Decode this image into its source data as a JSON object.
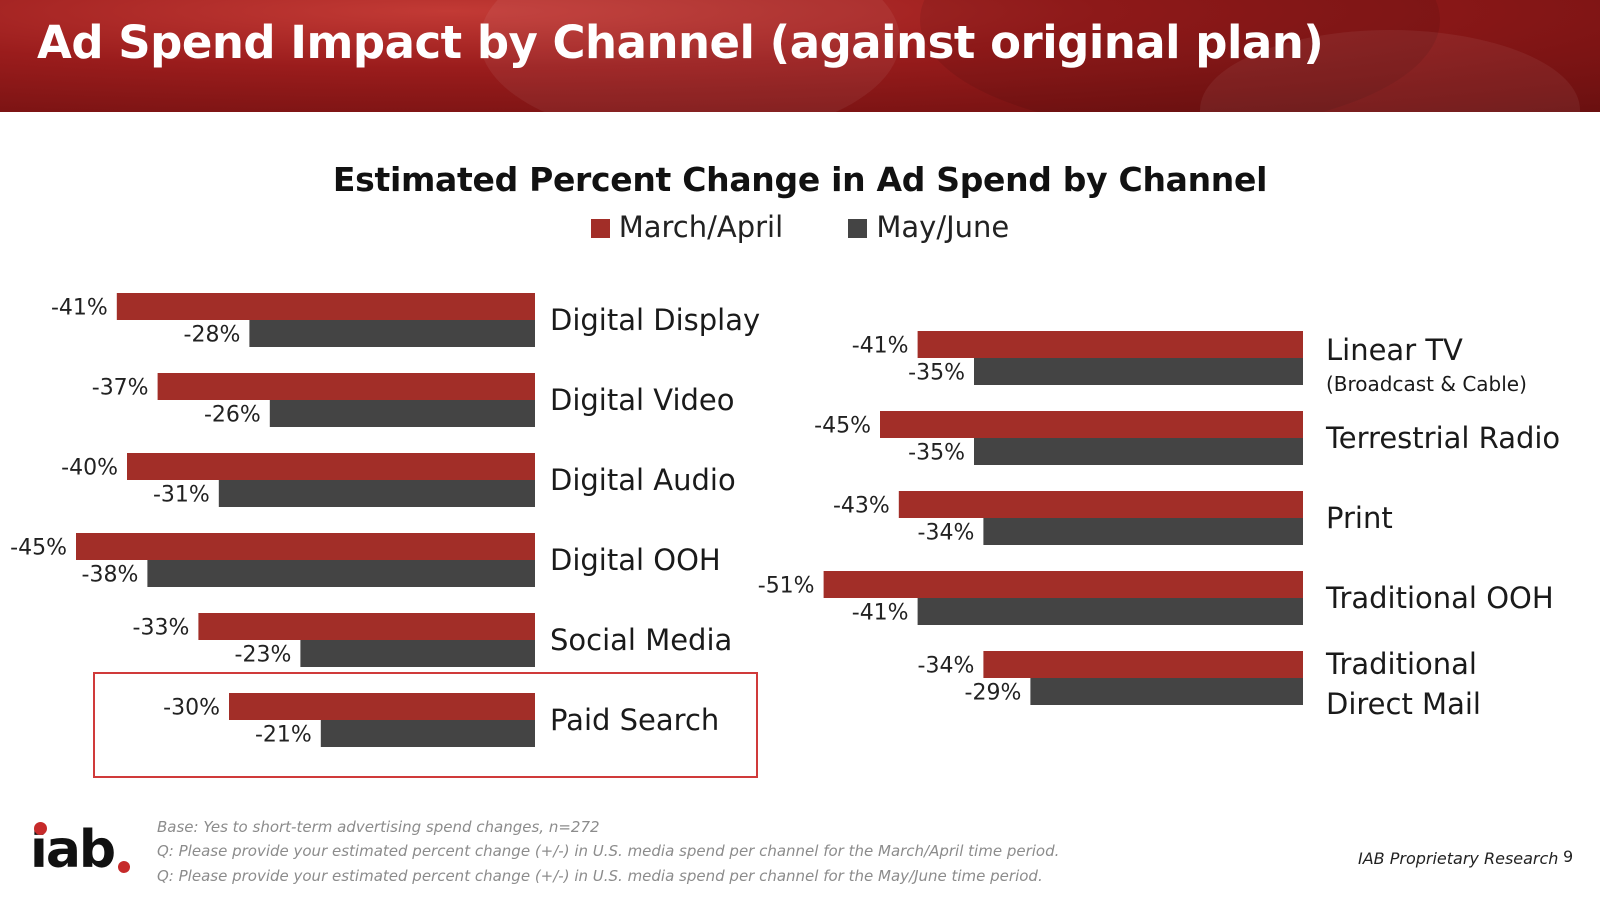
{
  "header": {
    "title": "Ad Spend Impact by Channel (against original plan)"
  },
  "legend": {
    "items": [
      "March/April",
      "May/June"
    ]
  },
  "colors": {
    "march_april": "#a22e28",
    "may_june": "#444444",
    "highlight_border": "#d03a3a",
    "header": "#8a1818"
  },
  "chart_data": [
    {
      "type": "bar",
      "title": "Estimated Percent Change in Ad Spend by Channel",
      "orientation": "horizontal",
      "categories": [
        {
          "label": "Digital Display"
        },
        {
          "label": "Digital Video"
        },
        {
          "label": "Digital Audio"
        },
        {
          "label": "Digital OOH"
        },
        {
          "label": "Social Media"
        },
        {
          "label": "Paid Search",
          "highlighted": true
        }
      ],
      "series": [
        {
          "name": "March/April",
          "values": [
            -41,
            -37,
            -40,
            -45,
            -33,
            -30
          ],
          "labels": [
            "-41%",
            "-37%",
            "-40%",
            "-45%",
            "-33%",
            "-30%"
          ]
        },
        {
          "name": "May/June",
          "values": [
            -28,
            -26,
            -31,
            -38,
            -23,
            -21
          ],
          "labels": [
            "-28%",
            "-26%",
            "-31%",
            "-38%",
            "-23%",
            "-21%"
          ]
        }
      ],
      "xlim": [
        -51,
        0
      ]
    },
    {
      "type": "bar",
      "orientation": "horizontal",
      "categories": [
        {
          "label": "Linear TV",
          "sublabel": "(Broadcast & Cable)"
        },
        {
          "label": "Terrestrial Radio"
        },
        {
          "label": "Print"
        },
        {
          "label": "Traditional OOH"
        },
        {
          "label": "Traditional",
          "label2": "Direct Mail"
        }
      ],
      "series": [
        {
          "name": "March/April",
          "values": [
            -41,
            -45,
            -43,
            -51,
            -34
          ],
          "labels": [
            "-41%",
            "-45%",
            "-43%",
            "-51%",
            "-34%"
          ]
        },
        {
          "name": "May/June",
          "values": [
            -35,
            -35,
            -34,
            -41,
            -29
          ],
          "labels": [
            "-35%",
            "-35%",
            "-34%",
            "-41%",
            "-29%"
          ]
        }
      ],
      "xlim": [
        -51,
        0
      ]
    }
  ],
  "footnotes": [
    "Base: Yes to short-term advertising spend changes, n=272",
    "Q: Please provide your estimated percent change (+/-) in U.S. media spend per channel for the March/April time period.",
    "Q: Please provide your estimated percent change (+/-) in U.S. media spend per channel for the May/June time period."
  ],
  "footer": {
    "logo": "iab",
    "proprietary": "IAB Proprietary Research",
    "page_number": "9"
  }
}
